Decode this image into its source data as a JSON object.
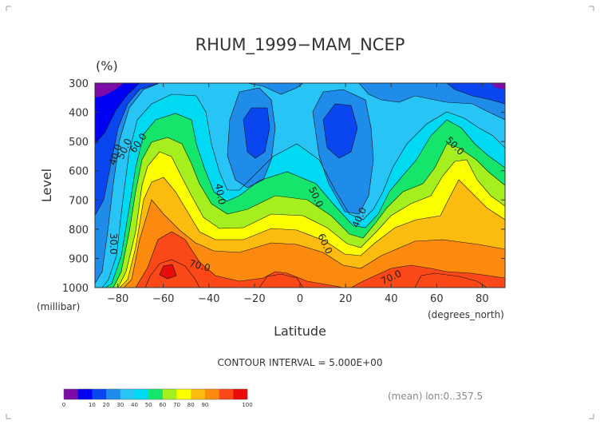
{
  "chart_data": {
    "type": "heatmap",
    "title": "RHUM_1999−MAM_NCEP",
    "units_label": "(%)",
    "xlabel": "Latitude",
    "x_unit_label": "(degrees_north)",
    "ylabel": "Level",
    "y_unit_label": "(millibar)",
    "x_ticks": [
      "−80",
      "−60",
      "−40",
      "−20",
      "0",
      "20",
      "40",
      "60",
      "80"
    ],
    "x_tick_values": [
      -80,
      -60,
      -40,
      -20,
      0,
      20,
      40,
      60,
      80
    ],
    "y_ticks": [
      "300",
      "400",
      "500",
      "600",
      "700",
      "800",
      "900",
      "1000"
    ],
    "y_tick_values": [
      300,
      400,
      500,
      600,
      700,
      800,
      900,
      1000
    ],
    "xlim": [
      -90,
      90
    ],
    "ylim": [
      1000,
      300
    ],
    "contour_interval_label": "CONTOUR INTERVAL = 5.000E+00",
    "footer_note": "(mean) lon:0..357.5",
    "colorbar": {
      "levels": [
        "0",
        "10",
        "20",
        "30",
        "40",
        "50",
        "60",
        "70",
        "80",
        "90",
        "100"
      ],
      "colors": [
        "#7b0ca8",
        "#0000f2",
        "#0a46f0",
        "#1e8ce8",
        "#27c4f5",
        "#00d9f2",
        "#15e66b",
        "#a6ef1e",
        "#fbff00",
        "#fbbb0f",
        "#fb8a0f",
        "#fb4818",
        "#ea0c0c"
      ]
    },
    "contour_labels": [
      {
        "text": "40.0",
        "lat": -81,
        "lev": 545,
        "angle": -72
      },
      {
        "text": "50.0",
        "lat": -77,
        "lev": 525,
        "angle": -65
      },
      {
        "text": "60.0",
        "lat": -71,
        "lev": 505,
        "angle": -55
      },
      {
        "text": "30.0",
        "lat": -82,
        "lev": 850,
        "angle": 90
      },
      {
        "text": "40.0",
        "lat": -35,
        "lev": 680,
        "angle": 80
      },
      {
        "text": "50.0",
        "lat": 7,
        "lev": 690,
        "angle": 65
      },
      {
        "text": "60.0",
        "lat": 11,
        "lev": 850,
        "angle": 65
      },
      {
        "text": "40.0",
        "lat": 26,
        "lev": 760,
        "angle": -65
      },
      {
        "text": "70.0",
        "lat": -44,
        "lev": 925,
        "angle": 15
      },
      {
        "text": "70.0",
        "lat": 40,
        "lev": 965,
        "angle": -25
      },
      {
        "text": "50.0",
        "lat": 68,
        "lev": 515,
        "angle": 45
      }
    ],
    "grid": false
  }
}
